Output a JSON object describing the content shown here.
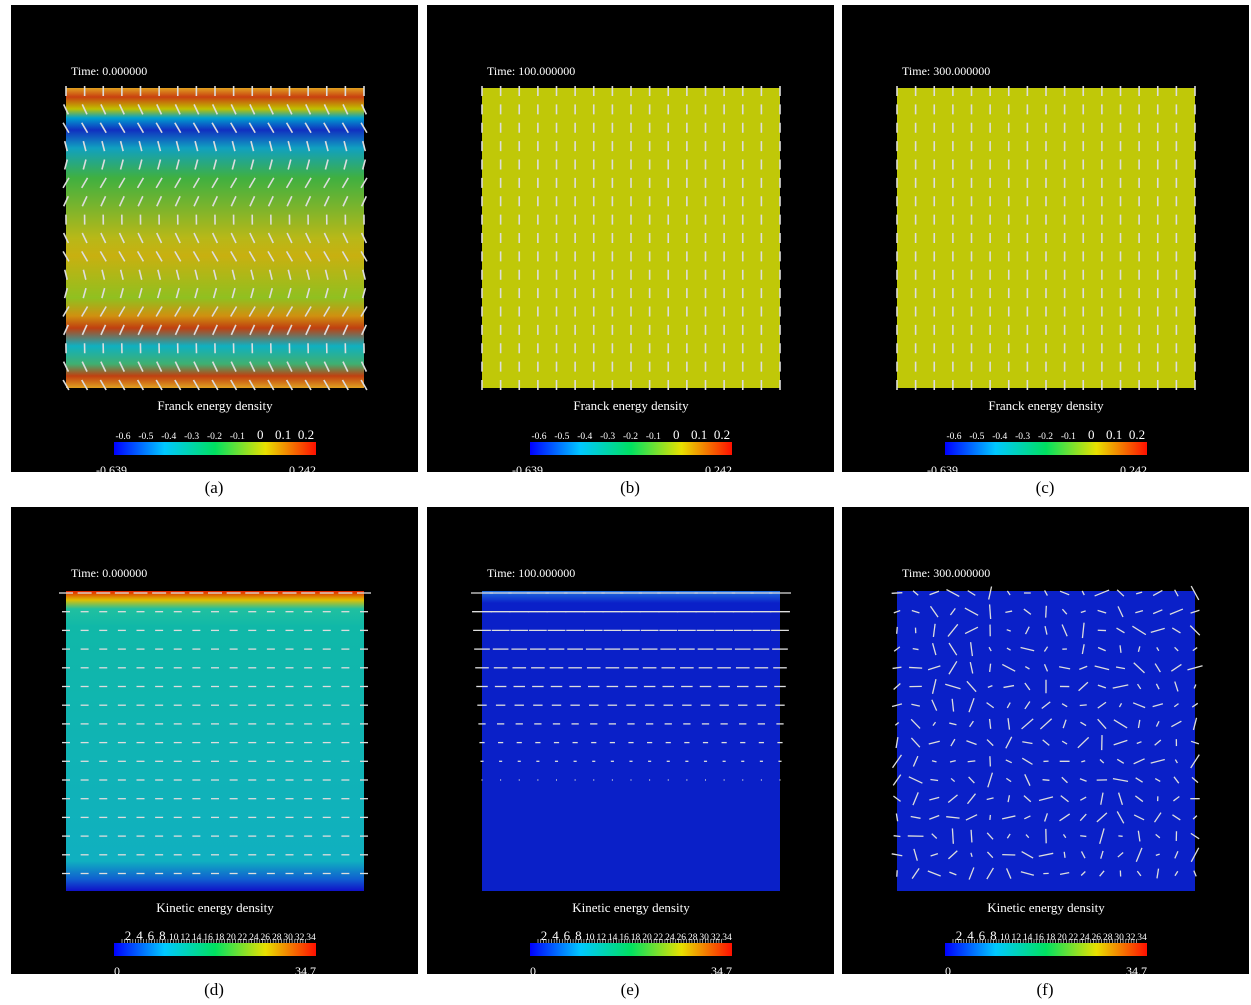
{
  "panels": [
    {
      "time": "Time: 0.000000",
      "legend_title": "Franck energy density",
      "legend_ticks": [
        "-0.6",
        "-0.5",
        "-0.4",
        "-0.3",
        "-0.2",
        "-0.1",
        "0",
        "0.1",
        "0.2"
      ],
      "min": "-0.639",
      "max": "0.242",
      "caption": "(a)"
    },
    {
      "time": "Time: 100.000000",
      "legend_title": "Franck energy density",
      "legend_ticks": [
        "-0.6",
        "-0.5",
        "-0.4",
        "-0.3",
        "-0.2",
        "-0.1",
        "0",
        "0.1",
        "0.2"
      ],
      "min": "-0.639",
      "max": "0.242",
      "caption": "(b)"
    },
    {
      "time": "Time: 300.000000",
      "legend_title": "Franck energy density",
      "legend_ticks": [
        "-0.6",
        "-0.5",
        "-0.4",
        "-0.3",
        "-0.2",
        "-0.1",
        "0",
        "0.1",
        "0.2"
      ],
      "min": "-0.639",
      "max": "0.242",
      "caption": "(c)"
    },
    {
      "time": "Time: 0.000000",
      "legend_title": "Kinetic energy density",
      "legend_ticks": [
        "2",
        "4",
        "6",
        "8",
        "10",
        "12",
        "14",
        "16",
        "18",
        "20",
        "22",
        "24",
        "26",
        "28",
        "30",
        "32",
        "34"
      ],
      "min": "0",
      "max": "34.7",
      "caption": "(d)"
    },
    {
      "time": "Time: 100.000000",
      "legend_title": "Kinetic energy density",
      "legend_ticks": [
        "2",
        "4",
        "6",
        "8",
        "10",
        "12",
        "14",
        "16",
        "18",
        "20",
        "22",
        "24",
        "26",
        "28",
        "30",
        "32",
        "34"
      ],
      "min": "0",
      "max": "34.7",
      "caption": "(e)"
    },
    {
      "time": "Time: 300.000000",
      "legend_title": "Kinetic energy density",
      "legend_ticks": [
        "2",
        "4",
        "6",
        "8",
        "10",
        "12",
        "14",
        "16",
        "18",
        "20",
        "22",
        "24",
        "26",
        "28",
        "30",
        "32",
        "34"
      ],
      "min": "0",
      "max": "34.7",
      "caption": "(f)"
    }
  ]
}
